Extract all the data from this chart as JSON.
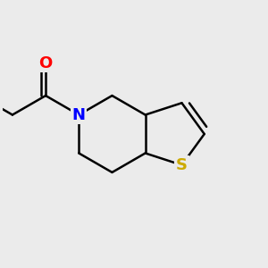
{
  "background_color": "#ebebeb",
  "atom_colors": {
    "O": "#ff0000",
    "N": "#0000ff",
    "S": "#ccaa00",
    "C": "#000000"
  },
  "bond_width": 1.8,
  "figsize": [
    3.0,
    3.0
  ],
  "dpi": 100
}
